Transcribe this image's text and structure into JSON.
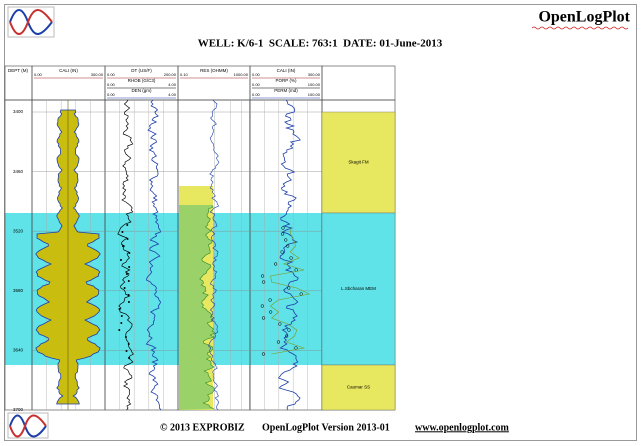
{
  "header": {
    "title": "OpenLogPlot",
    "subtitle": "WELL: K/6-1  SCALE: 763:1  DATE: 01-June-2013"
  },
  "depth_track": {
    "label": "DEPT (M)",
    "depths": [
      3400,
      3460,
      3520,
      3580,
      3640,
      3700
    ]
  },
  "tracks": [
    {
      "curves": [
        {
          "name": "CALI (IN)",
          "min": "0.00",
          "max": "300.00"
        }
      ]
    },
    {
      "curves": [
        {
          "name": "DT (US/F)",
          "min": "0.00",
          "max": "200.00"
        },
        {
          "name": "RHOB (G/C3)",
          "min": "0.00",
          "max": "4.00"
        },
        {
          "name": "DEN (gm)",
          "min": "0.00",
          "max": "4.00"
        }
      ]
    },
    {
      "curves": [
        {
          "name": "RES (OHMM)",
          "min": "0.10",
          "max": "1000.00"
        }
      ]
    },
    {
      "curves": [
        {
          "name": "CALI (IN)",
          "min": "0.00",
          "max": "300.00"
        },
        {
          "name": "PORP (%)",
          "min": "0.00",
          "max": "100.00"
        },
        {
          "name": "PERM (md)",
          "min": "0.00",
          "max": "100.00"
        }
      ]
    }
  ],
  "zones": [
    {
      "name": "Skagit FM"
    },
    {
      "name": "L.Sbcharan MEM"
    },
    {
      "name": "Caumar SS"
    }
  ],
  "footer": {
    "copyright": "© 2013 EXPROBIZ",
    "version": "OpenLogPlot Version 2013-01",
    "url": "www.openlogplot.com"
  }
}
